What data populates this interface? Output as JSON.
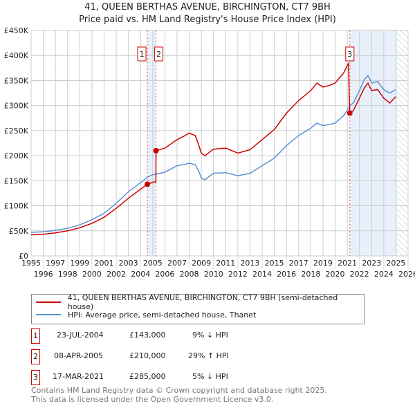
{
  "title": "41, QUEEN BERTHAS AVENUE, BIRCHINGTON, CT7 9BH",
  "subtitle": "Price paid vs. HM Land Registry's House Price Index (HPI)",
  "colors": {
    "property": "#cc0000",
    "hpi": "#5b8fd4",
    "shade": "#e8f0fb",
    "grid": "#cccccc"
  },
  "chart_data": {
    "type": "line",
    "title": "41, QUEEN BERTHAS AVENUE, BIRCHINGTON, CT7 9BH",
    "xlim": [
      1995,
      2026
    ],
    "ylim": [
      0,
      450000
    ],
    "grid": true,
    "x_ticks": [
      "1995",
      "1996",
      "1997",
      "1998",
      "1999",
      "2000",
      "2001",
      "2002",
      "2003",
      "2004",
      "2005",
      "2006",
      "2007",
      "2008",
      "2009",
      "2010",
      "2011",
      "2012",
      "2013",
      "2014",
      "2015",
      "2016",
      "2017",
      "2018",
      "2019",
      "2020",
      "2021",
      "2022",
      "2023",
      "2024",
      "2025",
      "2026"
    ],
    "y_ticks": [
      {
        "v": 0,
        "label": "£0"
      },
      {
        "v": 50000,
        "label": "£50K"
      },
      {
        "v": 100000,
        "label": "£100K"
      },
      {
        "v": 150000,
        "label": "£150K"
      },
      {
        "v": 200000,
        "label": "£200K"
      },
      {
        "v": 250000,
        "label": "£250K"
      },
      {
        "v": 300000,
        "label": "£300K"
      },
      {
        "v": 350000,
        "label": "£350K"
      },
      {
        "v": 400000,
        "label": "£400K"
      },
      {
        "v": 450000,
        "label": "£450K"
      }
    ],
    "series": [
      {
        "name": "41, QUEEN BERTHAS AVENUE, BIRCHINGTON, CT7 9BH (semi-detached house)",
        "x": [
          1995,
          1996,
          1997,
          1998,
          1999,
          2000,
          2001,
          2002,
          2003,
          2004,
          2004.56,
          2004.8,
          2005.0,
          2005.26,
          2005.27,
          2006,
          2007,
          2007.5,
          2008,
          2008.5,
          2008.8,
          2009,
          2009.3,
          2010,
          2011,
          2012,
          2013,
          2014,
          2015,
          2016,
          2017,
          2018,
          2018.5,
          2019,
          2019.5,
          2020,
          2020.7,
          2021.1,
          2021.15,
          2021.21,
          2021.5,
          2022,
          2022.4,
          2022.7,
          2023,
          2023.5,
          2024,
          2024.5,
          2025
        ],
        "y": [
          42000,
          43000,
          46000,
          50000,
          56000,
          65000,
          77000,
          95000,
          115000,
          133000,
          143000,
          145000,
          147000,
          148000,
          210000,
          215000,
          232000,
          238000,
          245000,
          240000,
          220000,
          205000,
          200000,
          213000,
          215000,
          205000,
          212000,
          232000,
          252000,
          285000,
          310000,
          330000,
          345000,
          337000,
          340000,
          345000,
          365000,
          385000,
          330000,
          285000,
          290000,
          315000,
          335000,
          345000,
          330000,
          332000,
          315000,
          305000,
          318000
        ]
      },
      {
        "name": "HPI: Average price, semi-detached house, Thanet",
        "x": [
          1995,
          1996,
          1997,
          1998,
          1999,
          2000,
          2001,
          2002,
          2003,
          2004,
          2004.56,
          2005,
          2005.27,
          2006,
          2007,
          2007.5,
          2008,
          2008.5,
          2008.8,
          2009,
          2009.3,
          2010,
          2011,
          2012,
          2013,
          2014,
          2015,
          2016,
          2017,
          2018,
          2018.5,
          2019,
          2019.5,
          2020,
          2020.7,
          2021.1,
          2021.21,
          2021.5,
          2022,
          2022.4,
          2022.7,
          2023,
          2023.5,
          2024,
          2024.5,
          2025
        ],
        "y": [
          47000,
          48000,
          51000,
          55000,
          62000,
          72000,
          85000,
          105000,
          128000,
          146000,
          157000,
          162000,
          163000,
          167000,
          180000,
          182000,
          185000,
          182000,
          168000,
          155000,
          152000,
          165000,
          166000,
          160000,
          165000,
          180000,
          195000,
          220000,
          240000,
          255000,
          265000,
          260000,
          262000,
          265000,
          280000,
          295000,
          300000,
          305000,
          330000,
          352000,
          360000,
          345000,
          348000,
          332000,
          325000,
          332000
        ]
      }
    ],
    "transactions": [
      {
        "n": "1",
        "x": 2004.56,
        "y": 143000
      },
      {
        "n": "2",
        "x": 2005.27,
        "y": 210000
      },
      {
        "n": "3",
        "x": 2021.21,
        "y": 285000
      }
    ],
    "shaded_ranges": [
      [
        2004.56,
        2005.27
      ],
      [
        2021.21,
        2025.1
      ]
    ],
    "hatched_from": 2025.1
  },
  "legend": {
    "property": "41, QUEEN BERTHAS AVENUE, BIRCHINGTON, CT7 9BH (semi-detached house)",
    "hpi": "HPI: Average price, semi-detached house, Thanet"
  },
  "table": [
    {
      "n": "1",
      "date": "23-JUL-2004",
      "price": "£143,000",
      "hpi": "9% ↓ HPI"
    },
    {
      "n": "2",
      "date": "08-APR-2005",
      "price": "£210,000",
      "hpi": "29% ↑ HPI"
    },
    {
      "n": "3",
      "date": "17-MAR-2021",
      "price": "£285,000",
      "hpi": "5% ↓ HPI"
    }
  ],
  "footer": [
    "Contains HM Land Registry data © Crown copyright and database right 2025.",
    "This data is licensed under the Open Government Licence v3.0."
  ]
}
